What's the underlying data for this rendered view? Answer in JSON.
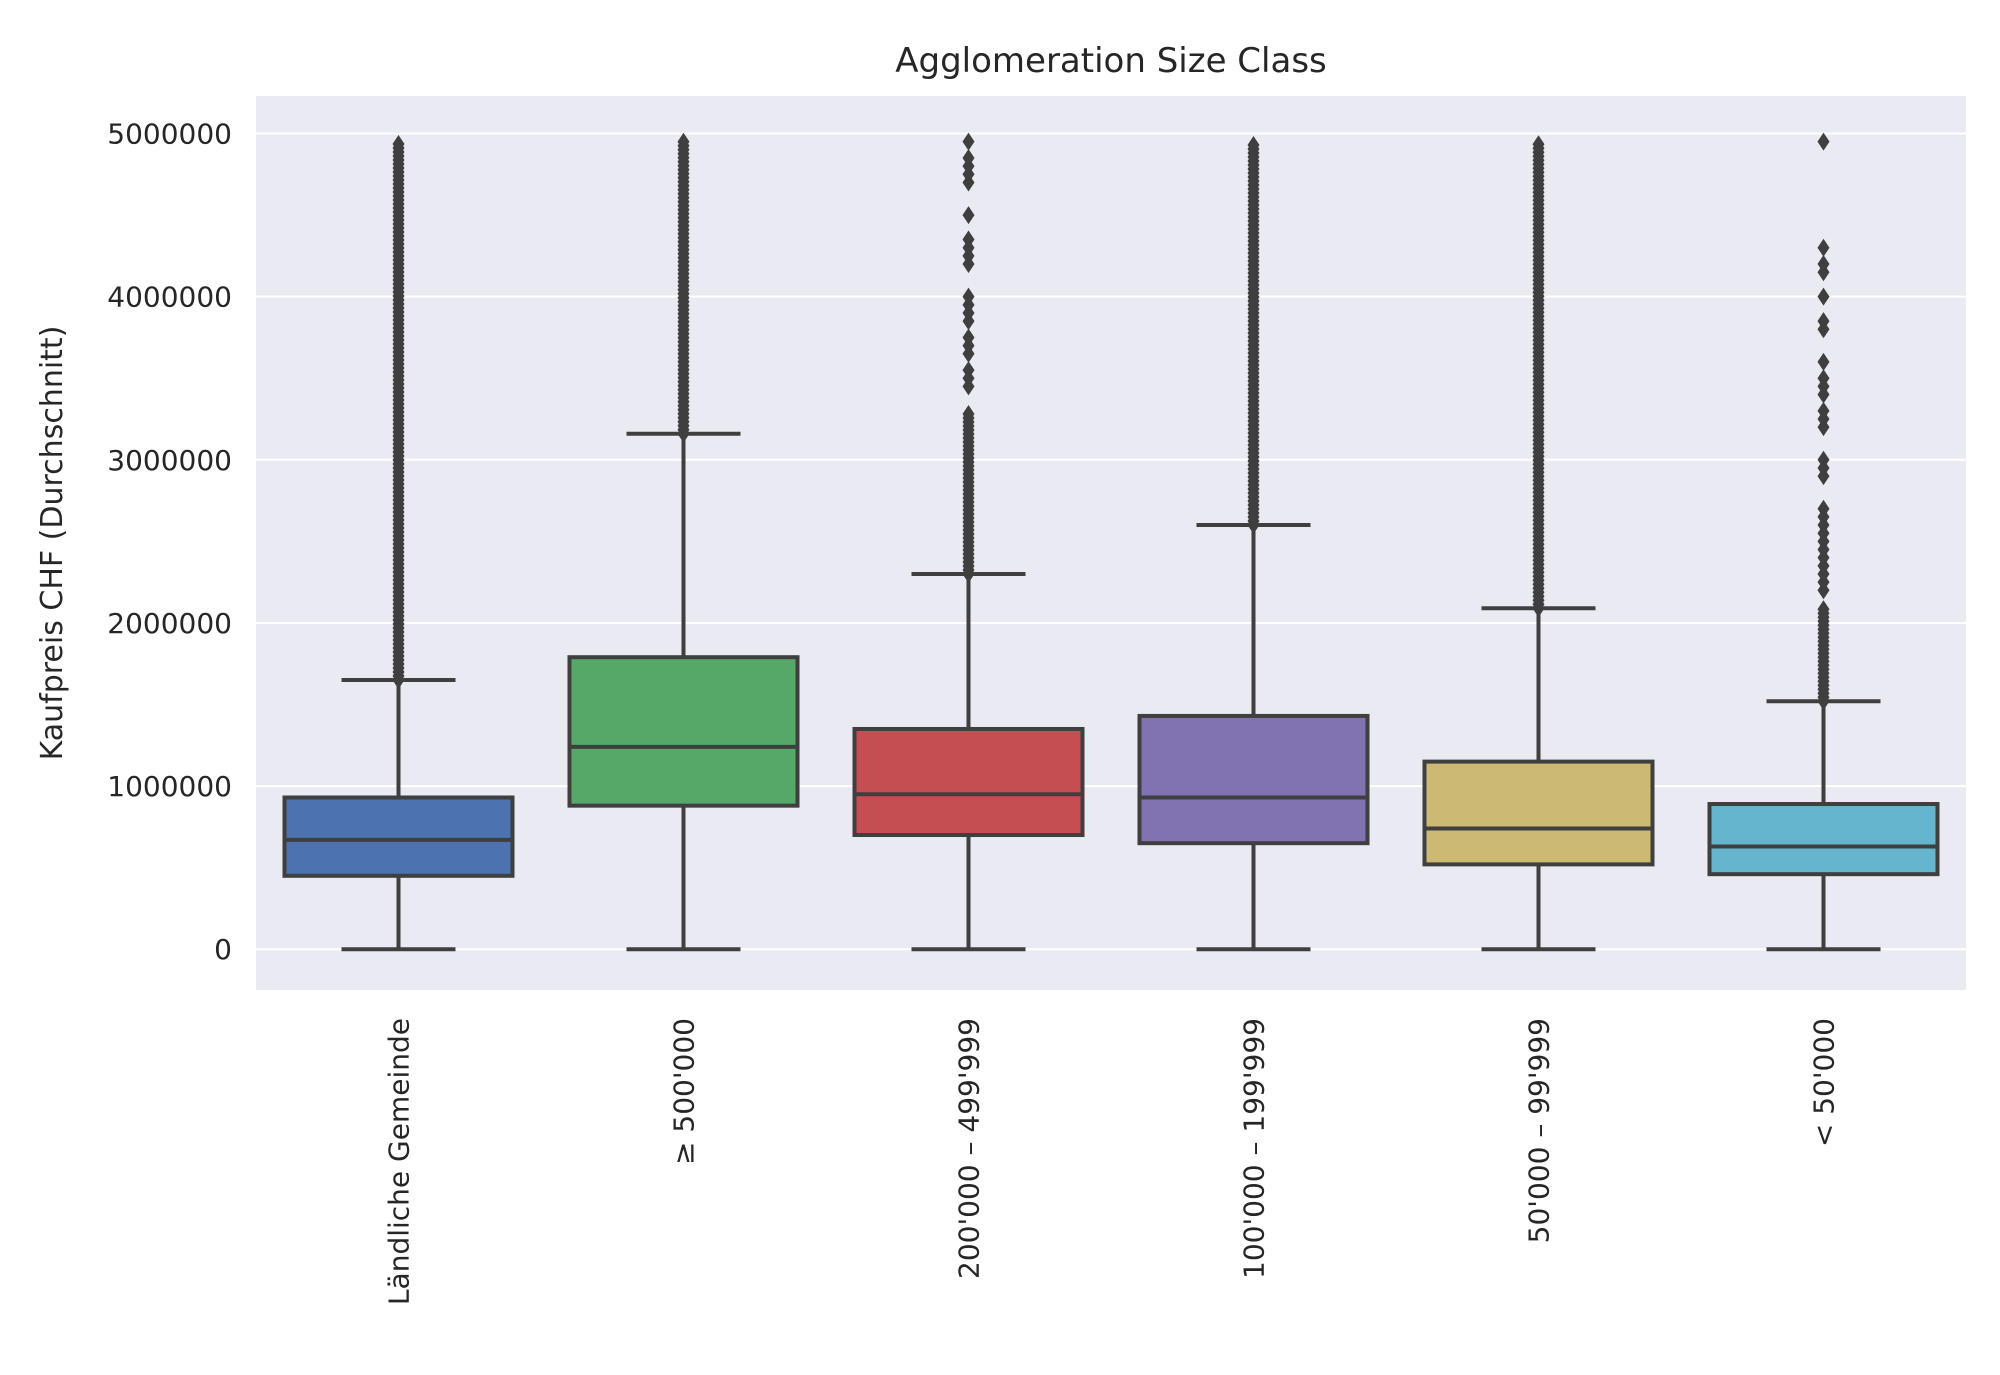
{
  "chart_data": {
    "type": "box",
    "title": "Agglomeration Size Class",
    "xlabel": "",
    "ylabel": "Kaufpreis CHF (Durchschnitt)",
    "ylim": [
      -250000,
      5230000
    ],
    "yticks": [
      0,
      1000000,
      2000000,
      3000000,
      4000000,
      5000000
    ],
    "ytick_labels": [
      "0",
      "1000000",
      "2000000",
      "3000000",
      "4000000",
      "5000000"
    ],
    "grid": true,
    "legend": "none",
    "categories": [
      "Ländliche Gemeinde",
      "≥ 500'000",
      "200'000 – 499'999",
      "100'000 – 199'999",
      "50'000 – 99'999",
      "< 50'000"
    ],
    "colors": [
      "#4c72b0",
      "#55a868",
      "#c44e52",
      "#8172b2",
      "#ccb974",
      "#64b5cd"
    ],
    "background_color": "#eaeaf2",
    "box_edge_color": "#3f3f3f",
    "grid_color": "#ffffff",
    "boxes": [
      {
        "min": 0,
        "q1": 450000,
        "median": 670000,
        "q3": 930000,
        "whisker_high": 1650000,
        "outliers": {
          "dense_ranges": [
            [
              1650000,
              4950000
            ]
          ],
          "points": []
        }
      },
      {
        "min": 0,
        "q1": 880000,
        "median": 1240000,
        "q3": 1790000,
        "whisker_high": 3160000,
        "outliers": {
          "dense_ranges": [
            [
              3160000,
              4970000
            ]
          ],
          "points": []
        }
      },
      {
        "min": 0,
        "q1": 700000,
        "median": 950000,
        "q3": 1350000,
        "whisker_high": 2300000,
        "outliers": {
          "dense_ranges": [
            [
              2300000,
              3300000
            ]
          ],
          "points": [
            3450000,
            3500000,
            3550000,
            3650000,
            3700000,
            3750000,
            3850000,
            3900000,
            3950000,
            4000000,
            4200000,
            4250000,
            4300000,
            4350000,
            4500000,
            4700000,
            4750000,
            4800000,
            4850000,
            4950000
          ]
        }
      },
      {
        "min": 0,
        "q1": 650000,
        "median": 930000,
        "q3": 1430000,
        "whisker_high": 2600000,
        "outliers": {
          "dense_ranges": [
            [
              2600000,
              4950000
            ]
          ],
          "points": []
        }
      },
      {
        "min": 0,
        "q1": 520000,
        "median": 740000,
        "q3": 1150000,
        "whisker_high": 2090000,
        "outliers": {
          "dense_ranges": [
            [
              2090000,
              4950000
            ]
          ],
          "points": []
        }
      },
      {
        "min": 0,
        "q1": 460000,
        "median": 630000,
        "q3": 890000,
        "whisker_high": 1520000,
        "outliers": {
          "dense_ranges": [
            [
              1520000,
              2100000
            ]
          ],
          "points": [
            2200000,
            2250000,
            2300000,
            2350000,
            2400000,
            2450000,
            2500000,
            2550000,
            2600000,
            2650000,
            2700000,
            2900000,
            2950000,
            3000000,
            3200000,
            3250000,
            3300000,
            3400000,
            3450000,
            3500000,
            3600000,
            3800000,
            3850000,
            4000000,
            4150000,
            4200000,
            4300000,
            4950000
          ]
        }
      }
    ]
  }
}
